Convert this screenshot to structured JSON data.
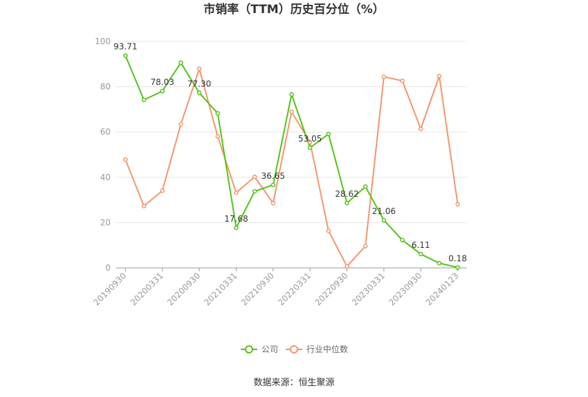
{
  "chart_data": {
    "type": "line",
    "title": "市销率（TTM）历史百分位（%）",
    "ylim": [
      0,
      100
    ],
    "y_ticks": [
      0,
      20,
      40,
      60,
      80,
      100
    ],
    "grid": true,
    "legend_position": "bottom-center",
    "x_tick_labels": [
      "20190930",
      "20200331",
      "20200930",
      "20210331",
      "20210930",
      "20220331",
      "20220930",
      "20230331",
      "20230930",
      "20240123"
    ],
    "x": [
      "20190930",
      "20191231",
      "20200331",
      "20200630",
      "20200930",
      "20201231",
      "20210331",
      "20210630",
      "20210930",
      "20211231",
      "20220331",
      "20220630",
      "20220930",
      "20221231",
      "20230331",
      "20230630",
      "20230930",
      "20231231",
      "20240123"
    ],
    "series": [
      {
        "name": "公司",
        "color": "#52c41a",
        "values": [
          93.71,
          74.2,
          78.03,
          90.6,
          77.3,
          68.2,
          17.68,
          33.8,
          36.65,
          76.6,
          53.05,
          59.1,
          28.62,
          35.9,
          21.06,
          12.3,
          6.11,
          2.1,
          0.18
        ],
        "data_labels": [
          {
            "index": 0,
            "text": "93.71"
          },
          {
            "index": 2,
            "text": "78.03"
          },
          {
            "index": 4,
            "text": "77.30"
          },
          {
            "index": 6,
            "text": "17.68"
          },
          {
            "index": 8,
            "text": "36.65"
          },
          {
            "index": 10,
            "text": "53.05"
          },
          {
            "index": 12,
            "text": "28.62"
          },
          {
            "index": 14,
            "text": "21.06"
          },
          {
            "index": 16,
            "text": "6.11"
          },
          {
            "index": 18,
            "text": "0.18"
          }
        ]
      },
      {
        "name": "行业中位数",
        "color": "#f5956b",
        "values": [
          47.8,
          27.3,
          34.1,
          63.4,
          87.9,
          58.1,
          33.2,
          40.2,
          28.6,
          68.9,
          55.5,
          16.4,
          0.7,
          9.6,
          84.4,
          82.6,
          61.4,
          84.7,
          28.1
        ],
        "data_labels": []
      }
    ]
  },
  "source_text": "数据来源：恒生聚源"
}
